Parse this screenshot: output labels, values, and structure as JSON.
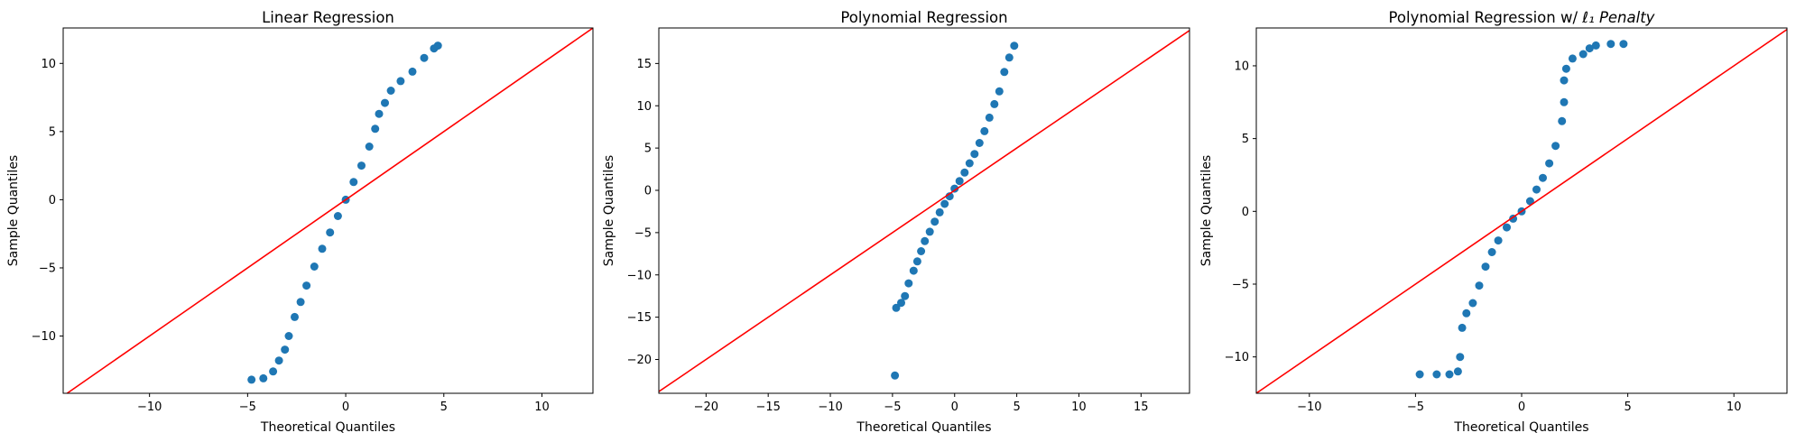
{
  "colors": {
    "points": "#1f77b4",
    "reference_line": "#ff0000",
    "frame": "#000000"
  },
  "chart_data": [
    {
      "type": "scatter",
      "title": "Linear Regression",
      "title_tail": "",
      "xlabel": "Theoretical Quantiles",
      "ylabel": "Sample Quantiles",
      "xlim": [
        -14.4,
        12.6
      ],
      "ylim": [
        -14.2,
        12.6
      ],
      "xticks": [
        -10,
        -5,
        0,
        5,
        10
      ],
      "yticks": [
        -10,
        -5,
        0,
        5,
        10
      ],
      "reference_line": "45-degree",
      "points": [
        [
          -4.8,
          -13.2
        ],
        [
          -4.2,
          -13.1
        ],
        [
          -3.7,
          -12.6
        ],
        [
          -3.4,
          -11.8
        ],
        [
          -3.1,
          -11.0
        ],
        [
          -2.9,
          -10.0
        ],
        [
          -2.6,
          -8.6
        ],
        [
          -2.3,
          -7.5
        ],
        [
          -2.0,
          -6.3
        ],
        [
          -1.6,
          -4.9
        ],
        [
          -1.2,
          -3.6
        ],
        [
          -0.8,
          -2.4
        ],
        [
          -0.4,
          -1.2
        ],
        [
          0.0,
          0.0
        ],
        [
          0.4,
          1.3
        ],
        [
          0.8,
          2.5
        ],
        [
          1.2,
          3.9
        ],
        [
          1.5,
          5.2
        ],
        [
          1.7,
          6.3
        ],
        [
          2.0,
          7.1
        ],
        [
          2.3,
          8.0
        ],
        [
          2.8,
          8.7
        ],
        [
          3.4,
          9.4
        ],
        [
          4.0,
          10.4
        ],
        [
          4.5,
          11.1
        ],
        [
          4.7,
          11.3
        ]
      ]
    },
    {
      "type": "scatter",
      "title": "Polynomial Regression",
      "title_tail": "",
      "xlabel": "Theoretical Quantiles",
      "ylabel": "Sample Quantiles",
      "xlim": [
        -23.8,
        18.9
      ],
      "ylim": [
        -24.0,
        19.2
      ],
      "xticks": [
        -20,
        -15,
        -10,
        -5,
        0,
        5,
        10,
        15
      ],
      "yticks": [
        -20,
        -15,
        -10,
        -5,
        0,
        5,
        10,
        15
      ],
      "reference_line": "45-degree",
      "points": [
        [
          -4.8,
          -21.9
        ],
        [
          -4.7,
          -13.9
        ],
        [
          -4.3,
          -13.3
        ],
        [
          -4.0,
          -12.5
        ],
        [
          -3.7,
          -11.0
        ],
        [
          -3.3,
          -9.5
        ],
        [
          -3.0,
          -8.4
        ],
        [
          -2.7,
          -7.2
        ],
        [
          -2.4,
          -6.0
        ],
        [
          -2.0,
          -4.9
        ],
        [
          -1.6,
          -3.7
        ],
        [
          -1.2,
          -2.6
        ],
        [
          -0.8,
          -1.6
        ],
        [
          -0.4,
          -0.7
        ],
        [
          0.0,
          0.2
        ],
        [
          0.4,
          1.1
        ],
        [
          0.8,
          2.1
        ],
        [
          1.2,
          3.2
        ],
        [
          1.6,
          4.3
        ],
        [
          2.0,
          5.6
        ],
        [
          2.4,
          7.0
        ],
        [
          2.8,
          8.6
        ],
        [
          3.2,
          10.2
        ],
        [
          3.6,
          11.7
        ],
        [
          4.0,
          14.0
        ],
        [
          4.4,
          15.7
        ],
        [
          4.8,
          17.1
        ]
      ]
    },
    {
      "type": "scatter",
      "title": "Polynomial Regression w/ ",
      "title_tail": "ℓ₁ Penalty",
      "xlabel": "Theoretical Quantiles",
      "ylabel": "Sample Quantiles",
      "xlim": [
        -12.5,
        12.5
      ],
      "ylim": [
        -12.5,
        12.6
      ],
      "xticks": [
        -10,
        -5,
        0,
        5,
        10
      ],
      "yticks": [
        -10,
        -5,
        0,
        5,
        10
      ],
      "reference_line": "45-degree",
      "points": [
        [
          -4.8,
          -11.2
        ],
        [
          -4.0,
          -11.2
        ],
        [
          -3.4,
          -11.2
        ],
        [
          -3.0,
          -11.0
        ],
        [
          -2.9,
          -10.0
        ],
        [
          -2.8,
          -8.0
        ],
        [
          -2.6,
          -7.0
        ],
        [
          -2.3,
          -6.3
        ],
        [
          -2.0,
          -5.1
        ],
        [
          -1.7,
          -3.8
        ],
        [
          -1.4,
          -2.8
        ],
        [
          -1.1,
          -2.0
        ],
        [
          -0.7,
          -1.1
        ],
        [
          -0.4,
          -0.5
        ],
        [
          0.0,
          0.0
        ],
        [
          0.4,
          0.7
        ],
        [
          0.7,
          1.5
        ],
        [
          1.0,
          2.3
        ],
        [
          1.3,
          3.3
        ],
        [
          1.6,
          4.5
        ],
        [
          1.9,
          6.2
        ],
        [
          2.0,
          7.5
        ],
        [
          2.0,
          9.0
        ],
        [
          2.1,
          9.8
        ],
        [
          2.4,
          10.5
        ],
        [
          2.9,
          10.8
        ],
        [
          3.2,
          11.2
        ],
        [
          3.5,
          11.4
        ],
        [
          4.2,
          11.5
        ],
        [
          4.8,
          11.5
        ]
      ]
    }
  ]
}
